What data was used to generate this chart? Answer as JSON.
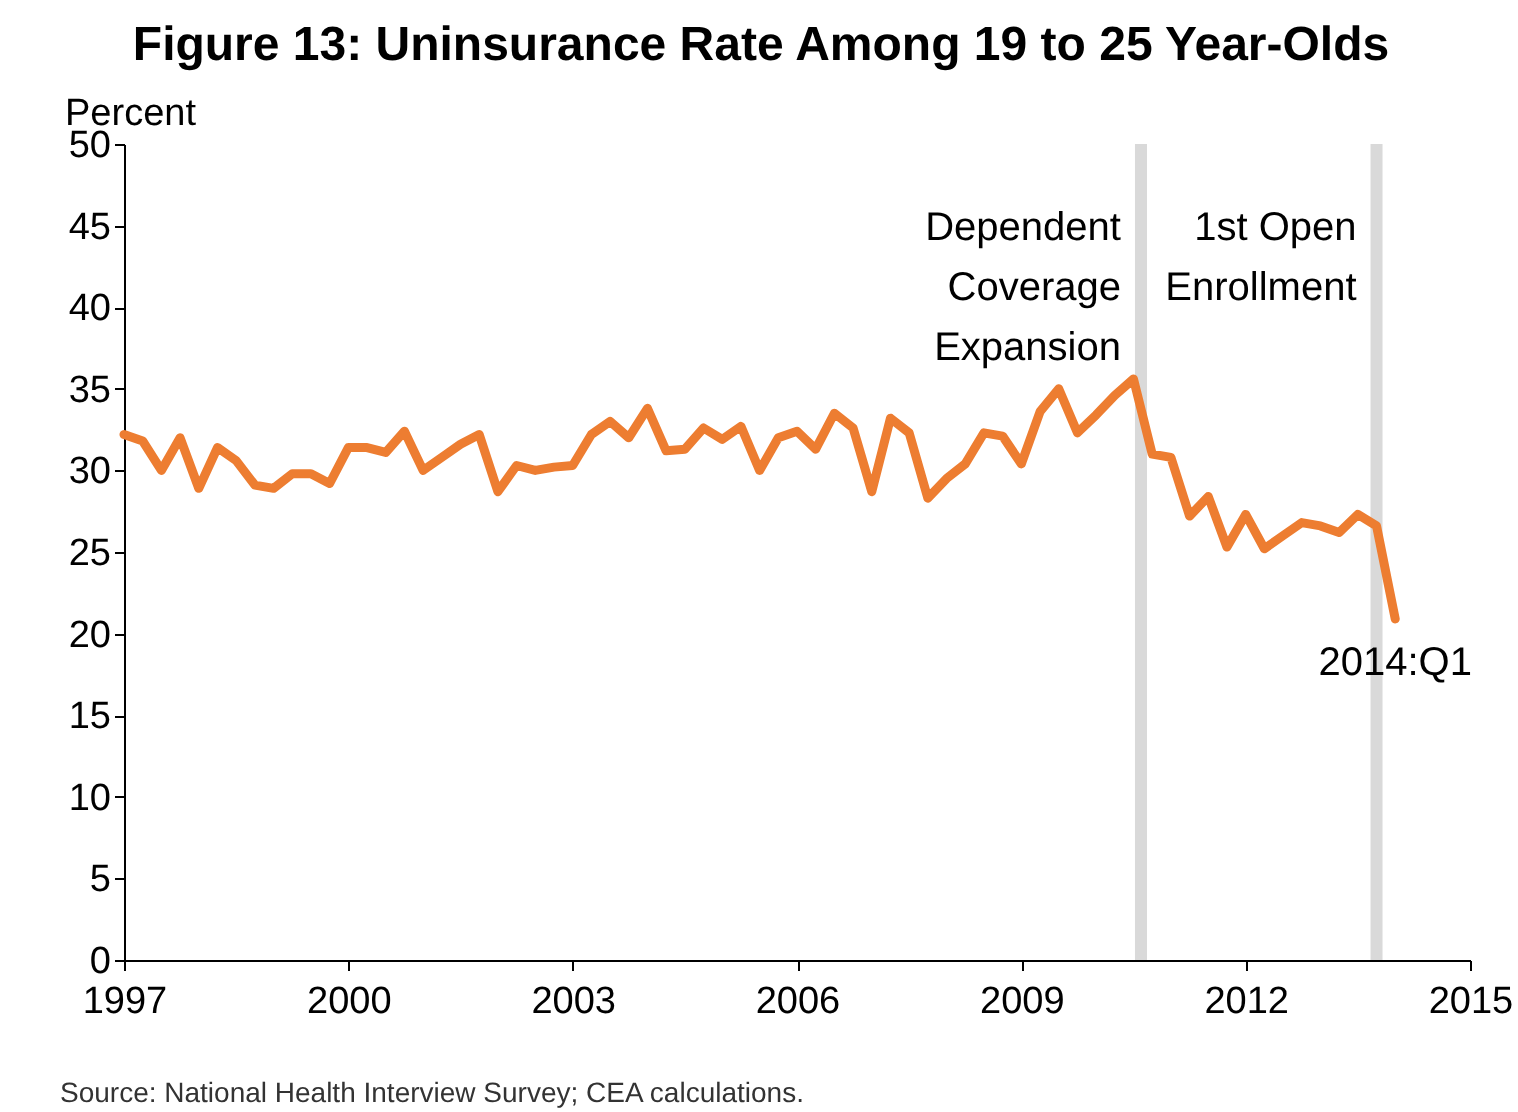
{
  "chart_data": {
    "type": "line",
    "title": "Figure 13: Uninsurance Rate Among 19 to 25 Year-Olds",
    "ylabel": "Percent",
    "x": [
      1997,
      1997.25,
      1997.5,
      1997.75,
      1998,
      1998.25,
      1998.5,
      1998.75,
      1999,
      1999.25,
      1999.5,
      1999.75,
      2000,
      2000.25,
      2000.5,
      2000.75,
      2001,
      2001.25,
      2001.5,
      2001.75,
      2002,
      2002.25,
      2002.5,
      2002.75,
      2003,
      2003.25,
      2003.5,
      2003.75,
      2004,
      2004.25,
      2004.5,
      2004.75,
      2005,
      2005.25,
      2005.5,
      2005.75,
      2006,
      2006.25,
      2006.5,
      2006.75,
      2007,
      2007.25,
      2007.5,
      2007.75,
      2008,
      2008.25,
      2008.5,
      2008.75,
      2009,
      2009.25,
      2009.5,
      2009.75,
      2010,
      2010.25,
      2010.5,
      2010.75,
      2011,
      2011.25,
      2011.5,
      2011.75,
      2012,
      2012.25,
      2012.5,
      2012.75,
      2013,
      2013.25,
      2013.5,
      2013.75,
      2014
    ],
    "series": [
      {
        "color": "#ed7d31",
        "values": [
          32.2,
          31.8,
          30.0,
          32.0,
          28.9,
          31.4,
          30.6,
          29.1,
          28.9,
          29.8,
          29.8,
          29.2,
          31.4,
          31.4,
          31.1,
          32.4,
          30.0,
          30.8,
          31.6,
          32.2,
          28.7,
          30.3,
          30.0,
          30.2,
          30.3,
          32.2,
          33.0,
          32.0,
          33.8,
          31.2,
          31.3,
          32.6,
          31.9,
          32.7,
          30.0,
          32.0,
          32.4,
          31.3,
          33.5,
          32.6,
          28.7,
          33.2,
          32.3,
          28.3,
          29.5,
          30.4,
          32.3,
          32.1,
          30.4,
          33.6,
          35.0,
          32.3,
          33.4,
          34.6,
          35.6,
          31.0,
          30.8,
          27.2,
          28.4,
          25.3,
          27.3,
          25.2,
          26.0,
          26.8,
          26.6,
          26.2,
          27.3,
          26.6,
          20.9
        ]
      }
    ],
    "xlim": [
      1997,
      2015
    ],
    "xticks": [
      1997,
      2000,
      2003,
      2006,
      2009,
      2012,
      2015
    ],
    "ylim": [
      0,
      50
    ],
    "yticks": [
      0,
      5,
      10,
      15,
      20,
      25,
      30,
      35,
      40,
      45,
      50
    ],
    "grid": false,
    "marker": "none",
    "line_style": "solid",
    "ref_lines": [
      {
        "axis": "x",
        "value": 2010.6,
        "label": "Dependent\nCoverage\nExpansion",
        "color": "#d9d9d9"
      },
      {
        "axis": "x",
        "value": 2013.75,
        "label": "1st Open\nEnrollment",
        "color": "#d9d9d9"
      }
    ],
    "annotations": [
      {
        "text": "2014:Q1",
        "x": 2014,
        "y": 20.9
      },
      "Source: National Health Interview Survey; CEA calculations."
    ]
  }
}
